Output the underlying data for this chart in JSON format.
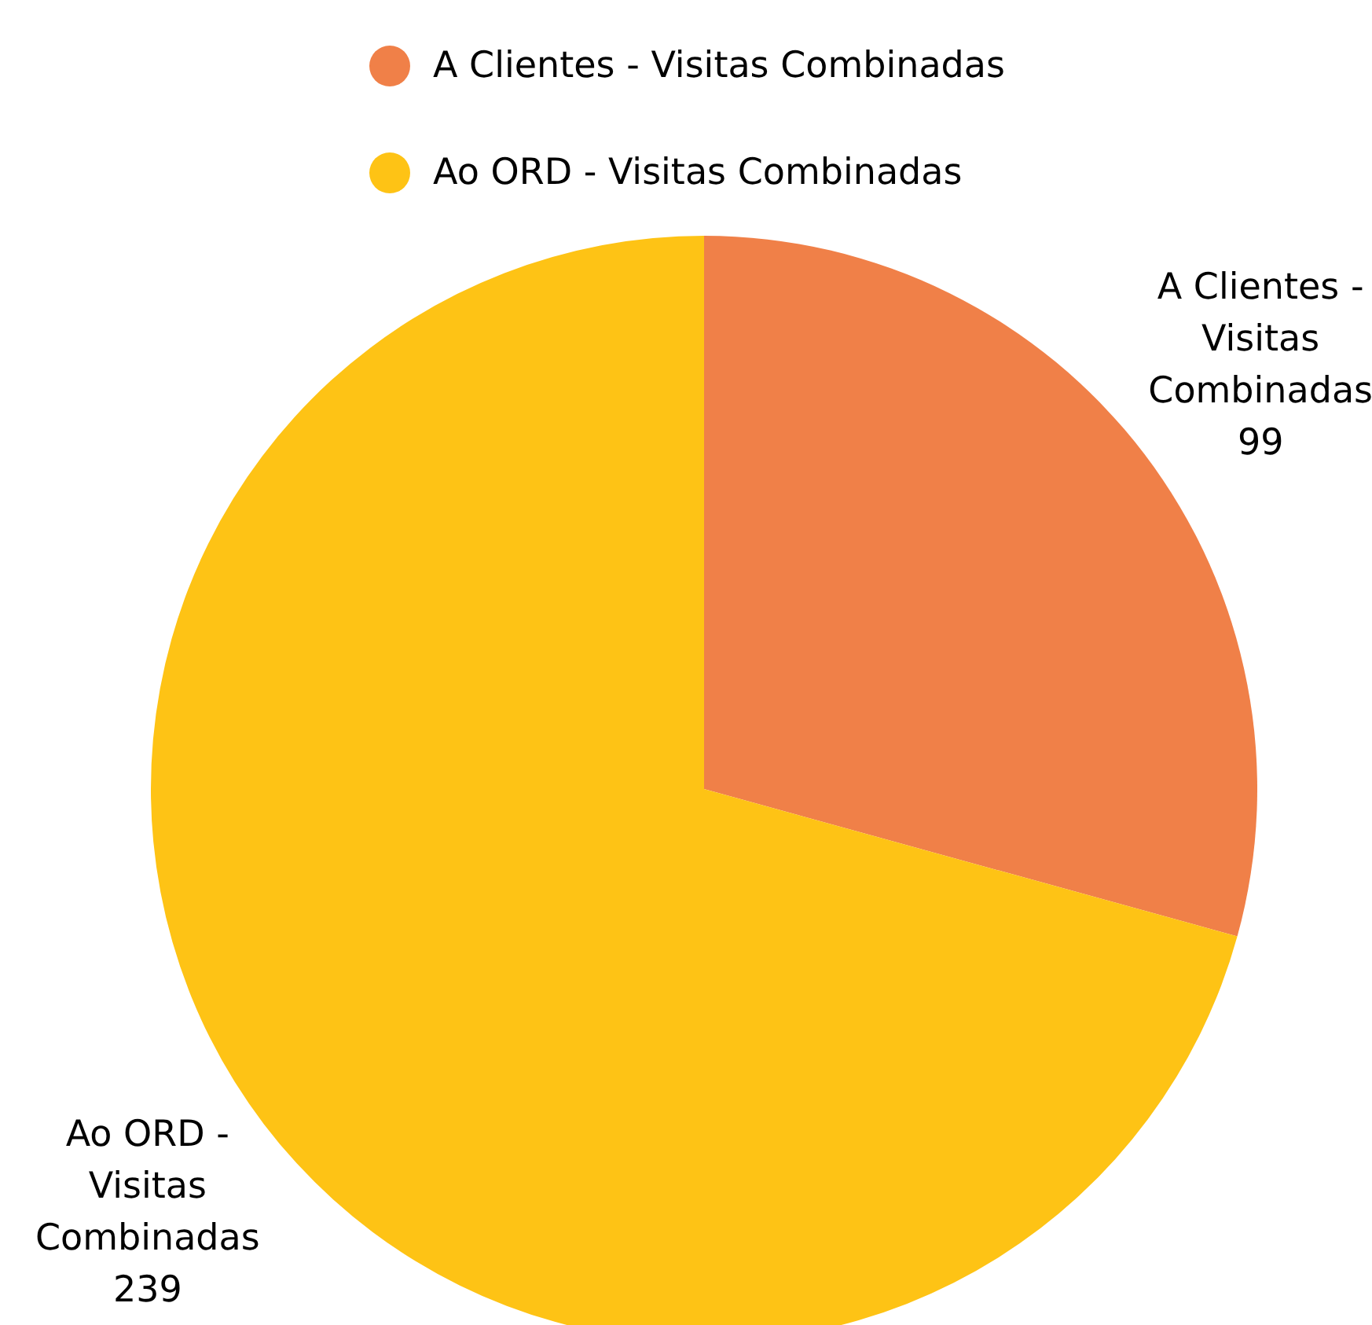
{
  "chart_data": {
    "type": "pie",
    "categories": [
      "A Clientes - Visitas Combinadas",
      "Ao ORD - Visitas Combinadas"
    ],
    "values": [
      99,
      239
    ],
    "colors": [
      "#f08048",
      "#fec315"
    ],
    "data_labels": true,
    "legend": "top"
  }
}
